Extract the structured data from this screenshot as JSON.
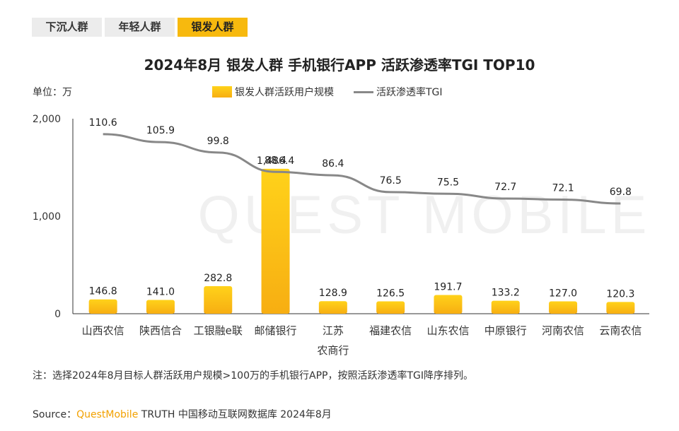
{
  "tabs": [
    {
      "label": "下沉人群",
      "active": false
    },
    {
      "label": "年轻人群",
      "active": false
    },
    {
      "label": "银发人群",
      "active": true
    }
  ],
  "watermark": "QUEST MOBILE",
  "unit_label": "单位：万",
  "legend": {
    "bar": "银发人群活跃用户规模",
    "line": "活跃渗透率TGI"
  },
  "note": "注：选择2024年8月目标人群活跃用户规模>100万的手机银行APP，按照活跃渗透率TGI降序排列。",
  "source": {
    "prefix": "Source：",
    "brand": "QuestMobile",
    "suffix": " TRUTH 中国移动互联网数据库 2024年8月"
  },
  "colors": {
    "bar_top": "#ffd21a",
    "bar_bottom": "#f7ae12",
    "line": "#888888",
    "tab_active": "#f7b90e"
  },
  "chart_data": {
    "type": "bar",
    "title": "2024年8月 银发人群 手机银行APP 活跃渗透率TGI TOP10",
    "categories": [
      "山西农信",
      "陕西信合",
      "工银融e联",
      "邮储银行",
      "江苏农商行",
      "福建农信",
      "山东农信",
      "中原银行",
      "河南农信",
      "云南农信"
    ],
    "category_lines": [
      [
        "山西农信"
      ],
      [
        "陕西信合"
      ],
      [
        "工银融e联"
      ],
      [
        "邮储银行"
      ],
      [
        "江苏",
        "农商行"
      ],
      [
        "福建农信"
      ],
      [
        "山东农信"
      ],
      [
        "中原银行"
      ],
      [
        "河南农信"
      ],
      [
        "云南农信"
      ]
    ],
    "series": [
      {
        "name": "银发人群活跃用户规模",
        "type": "bar",
        "values": [
          146.8,
          141.0,
          282.8,
          1486.4,
          128.9,
          126.5,
          191.7,
          133.2,
          127.0,
          120.3
        ],
        "labels": [
          "146.8",
          "141.0",
          "282.8",
          "1,486.4",
          "128.9",
          "126.5",
          "191.7",
          "133.2",
          "127.0",
          "120.3"
        ]
      },
      {
        "name": "活跃渗透率TGI",
        "type": "line",
        "values": [
          110.6,
          105.9,
          99.8,
          88.4,
          86.4,
          76.5,
          75.5,
          72.7,
          72.1,
          69.8
        ],
        "labels": [
          "110.6",
          "105.9",
          "99.8",
          "88.4",
          "86.4",
          "76.5",
          "75.5",
          "72.7",
          "72.1",
          "69.8"
        ]
      }
    ],
    "ylim": [
      0,
      2000
    ],
    "yticks": [
      0,
      1000,
      2000
    ],
    "ytick_labels": [
      "0",
      "1,000",
      "2,000"
    ],
    "ylabel": "单位：万",
    "grid": false,
    "legend_position": "top-center"
  }
}
